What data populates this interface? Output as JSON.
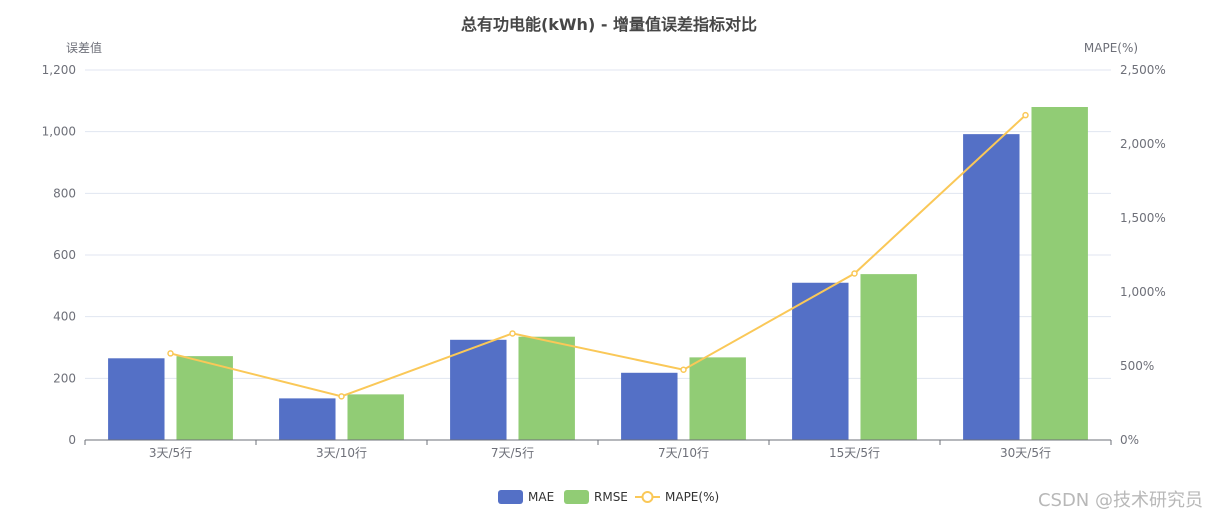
{
  "chart_data": {
    "type": "bar",
    "title": "总有功电能(kWh) - 增量值误差指标对比",
    "categories": [
      "3天/5行",
      "3天/10行",
      "7天/5行",
      "7天/10行",
      "15天/5行",
      "30天/5行"
    ],
    "series": [
      {
        "name": "MAE",
        "type": "bar",
        "axis": "left",
        "values": [
          265,
          135,
          325,
          218,
          510,
          992
        ]
      },
      {
        "name": "RMSE",
        "type": "bar",
        "axis": "left",
        "values": [
          272,
          148,
          335,
          268,
          538,
          1080
        ]
      },
      {
        "name": "MAPE(%)",
        "type": "line",
        "axis": "right",
        "values": [
          585,
          295,
          720,
          475,
          1125,
          2195
        ]
      }
    ],
    "ylabel": "误差值",
    "ylabel_right": "MAPE(%)",
    "ylim": [
      0,
      1200
    ],
    "ylim_right": [
      0,
      2500
    ],
    "yticks": [
      "0",
      "200",
      "400",
      "600",
      "800",
      "1,000",
      "1,200"
    ],
    "yticks_right": [
      "0%",
      "500%",
      "1,000%",
      "1,500%",
      "2,000%",
      "2,500%"
    ],
    "grid": true,
    "legend_position": "bottom-center"
  },
  "colors": {
    "MAE": "#5470c6",
    "RMSE": "#91cc75",
    "MAPE(%)": "#fac858"
  },
  "watermark": "CSDN @技术研究员"
}
